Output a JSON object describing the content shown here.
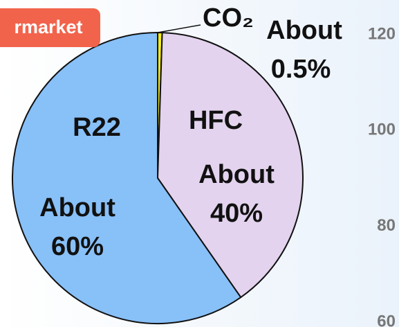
{
  "chart_data": {
    "type": "pie",
    "badge": "rmarket",
    "categories": [
      "CO₂",
      "HFC",
      "R22"
    ],
    "values": [
      0.5,
      40,
      60
    ],
    "value_labels": [
      "About 0.5%",
      "About 40%",
      "About 60%"
    ],
    "colors": [
      "#f2ea1a",
      "#e3d3ee",
      "#88c0f8"
    ],
    "background_axis": {
      "ylim": [
        60,
        120
      ],
      "yticks": [
        120,
        100,
        80,
        60
      ]
    }
  }
}
